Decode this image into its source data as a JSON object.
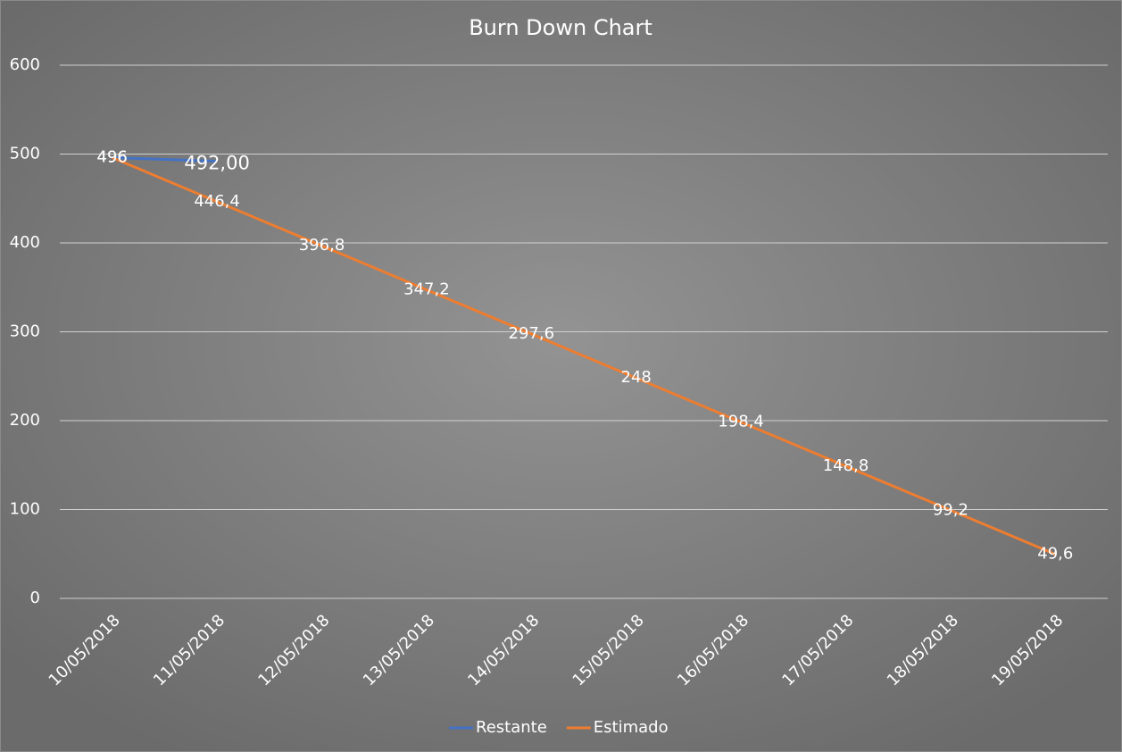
{
  "chart_data": {
    "type": "line",
    "title": "Burn Down Chart",
    "categories": [
      "10/05/2018",
      "11/05/2018",
      "12/05/2018",
      "13/05/2018",
      "14/05/2018",
      "15/05/2018",
      "16/05/2018",
      "17/05/2018",
      "18/05/2018",
      "19/05/2018"
    ],
    "series": [
      {
        "name": "Restante",
        "color": "#4472c4",
        "values": [
          496,
          492,
          null,
          null,
          null,
          null,
          null,
          null,
          null,
          null
        ],
        "value_labels": [
          "496",
          "492,00",
          null,
          null,
          null,
          null,
          null,
          null,
          null,
          null
        ]
      },
      {
        "name": "Estimado",
        "color": "#ed7d31",
        "values": [
          496,
          446.4,
          396.8,
          347.2,
          297.6,
          248,
          198.4,
          148.8,
          99.2,
          49.6
        ],
        "value_labels": [
          "496",
          "446,4",
          "396,8",
          "347,2",
          "297,6",
          "248",
          "198,4",
          "148,8",
          "99,2",
          "49,6"
        ]
      }
    ],
    "ylim": [
      0,
      600
    ],
    "yticks": [
      0,
      100,
      200,
      300,
      400,
      500,
      600
    ],
    "grid": true,
    "legend": "bottom"
  }
}
